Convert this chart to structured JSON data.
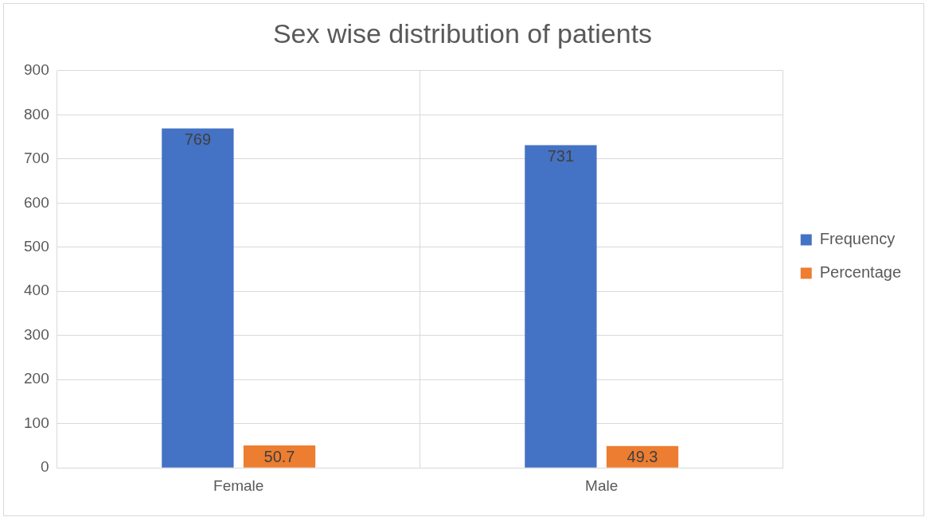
{
  "chart_data": {
    "type": "bar",
    "title": "Sex wise distribution of patients",
    "categories": [
      "Female",
      "Male"
    ],
    "series": [
      {
        "name": "Frequency",
        "color": "#4472c4",
        "values": [
          769,
          731
        ]
      },
      {
        "name": "Percentage",
        "color": "#ed7d31",
        "values": [
          50.7,
          49.3
        ]
      }
    ],
    "ylim": [
      0,
      900
    ],
    "yticks": [
      0,
      100,
      200,
      300,
      400,
      500,
      600,
      700,
      800,
      900
    ],
    "grid": true,
    "legend": "right",
    "data_labels": true
  }
}
